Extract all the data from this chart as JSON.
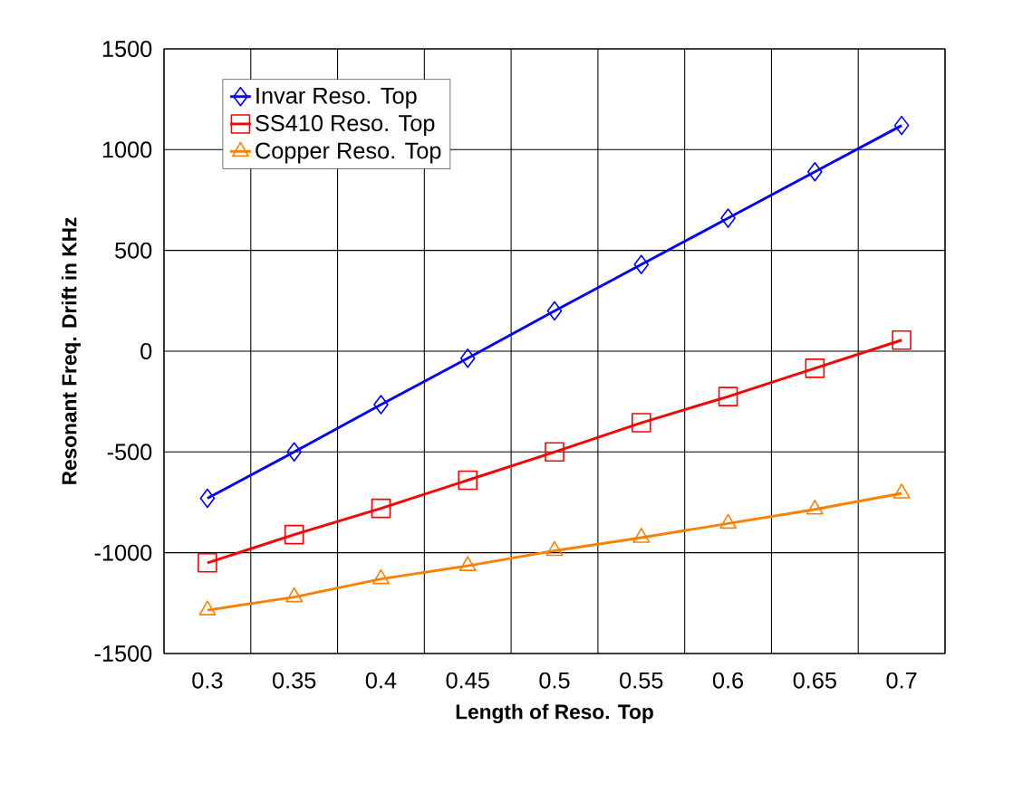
{
  "chart_data": {
    "type": "line",
    "xlabel": "Length of Reso. Top",
    "ylabel": "Resonant Freq. Drift in KHz",
    "categories": [
      "0.3",
      "0.35",
      "0.4",
      "0.45",
      "0.5",
      "0.55",
      "0.6",
      "0.65",
      "0.7"
    ],
    "series": [
      {
        "name": "Invar Reso. Top",
        "color": "#0000ff",
        "marker": "diamond",
        "values": [
          -730,
          -500,
          -265,
          -35,
          200,
          430,
          660,
          890,
          1120
        ]
      },
      {
        "name": "SS410 Reso. Top",
        "color": "#ff0000",
        "marker": "square",
        "values": [
          -1050,
          -910,
          -780,
          -640,
          -500,
          -355,
          -225,
          -85,
          55
        ]
      },
      {
        "name": "Copper Reso. Top",
        "color": "#ff8000",
        "marker": "triangle",
        "values": [
          -1285,
          -1220,
          -1130,
          -1065,
          -990,
          -925,
          -855,
          -785,
          -705
        ]
      }
    ],
    "ylim": [
      -1500,
      1500
    ],
    "yticks": [
      -1500,
      -1000,
      -500,
      0,
      500,
      1000,
      1500
    ],
    "grid": true,
    "legend": "top left",
    "line_style": "solid"
  }
}
